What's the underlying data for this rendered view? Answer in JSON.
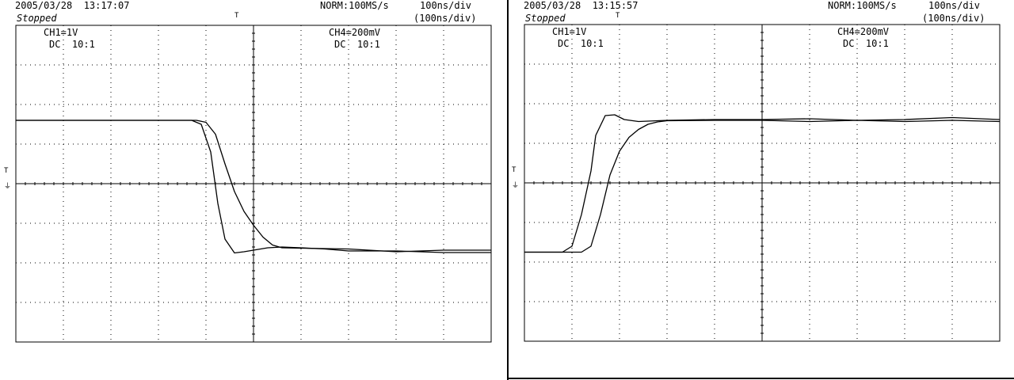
{
  "colors": {
    "background": "#ffffff",
    "ink": "#000000"
  },
  "panels": [
    {
      "timestamp": "2005/03/28  13:17:07",
      "status": "Stopped",
      "mode": "NORM:100MS/s",
      "timebase": "100ns/div",
      "timebase_sub": "(100ns/div)",
      "ch1_label": "CH1=1V",
      "ch1_coupling": "DC  10:1",
      "ch4_label": "CH4=200mV",
      "ch4_coupling": "DC  10:1",
      "trigger_marker": "T",
      "ground_marker": "T",
      "ground_symbol": "⏚"
    },
    {
      "timestamp": "2005/03/28  13:15:57",
      "status": "Stopped",
      "mode": "NORM:100MS/s",
      "timebase": "100ns/div",
      "timebase_sub": "(100ns/div)",
      "ch1_label": "CH1=1V",
      "ch1_coupling": "DC  10:1",
      "ch4_label": "CH4=200mV",
      "ch4_coupling": "DC  10:1",
      "trigger_marker": "T",
      "ground_marker": "T",
      "ground_symbol": "⏚"
    }
  ],
  "chart_data": [
    {
      "type": "line",
      "xlim": [
        -5,
        5
      ],
      "ylim": [
        -4,
        4
      ],
      "grid": true,
      "series": [
        {
          "x": [
            -5,
            -1.6,
            -1.3,
            -1.1,
            -0.9,
            -0.75,
            -0.6,
            -0.4,
            -0.2,
            0,
            0.3,
            0.6,
            1,
            1.5,
            2,
            3,
            4,
            5
          ],
          "y": [
            1.6,
            1.6,
            1.6,
            1.5,
            0.8,
            -0.5,
            -1.4,
            -1.75,
            -1.72,
            -1.68,
            -1.62,
            -1.6,
            -1.62,
            -1.65,
            -1.7,
            -1.7,
            -1.74,
            -1.74
          ]
        },
        {
          "x": [
            -5,
            -1.2,
            -1.0,
            -0.8,
            -0.6,
            -0.4,
            -0.2,
            0,
            0.2,
            0.4,
            0.6,
            1,
            2,
            3,
            4,
            5
          ],
          "y": [
            1.6,
            1.6,
            1.55,
            1.25,
            0.5,
            -0.2,
            -0.7,
            -1.05,
            -1.35,
            -1.55,
            -1.62,
            -1.63,
            -1.65,
            -1.72,
            -1.68,
            -1.68
          ]
        }
      ]
    },
    {
      "type": "line",
      "xlim": [
        -5,
        5
      ],
      "ylim": [
        -4,
        4
      ],
      "grid": true,
      "series": [
        {
          "x": [
            -5,
            -4.2,
            -4.0,
            -3.8,
            -3.6,
            -3.5,
            -3.3,
            -3.1,
            -2.9,
            -2.6,
            -2,
            -1,
            0,
            1,
            2,
            3,
            4,
            5
          ],
          "y": [
            -1.75,
            -1.75,
            -1.6,
            -0.8,
            0.3,
            1.2,
            1.7,
            1.72,
            1.6,
            1.55,
            1.58,
            1.6,
            1.6,
            1.62,
            1.58,
            1.6,
            1.65,
            1.6
          ]
        },
        {
          "x": [
            -5,
            -3.8,
            -3.6,
            -3.4,
            -3.2,
            -3.0,
            -2.8,
            -2.6,
            -2.4,
            -2.2,
            -2,
            -1,
            0,
            1,
            2,
            3,
            4,
            5
          ],
          "y": [
            -1.75,
            -1.75,
            -1.6,
            -0.8,
            0.2,
            0.8,
            1.15,
            1.35,
            1.48,
            1.54,
            1.57,
            1.58,
            1.58,
            1.55,
            1.58,
            1.55,
            1.58,
            1.55
          ]
        }
      ]
    }
  ]
}
